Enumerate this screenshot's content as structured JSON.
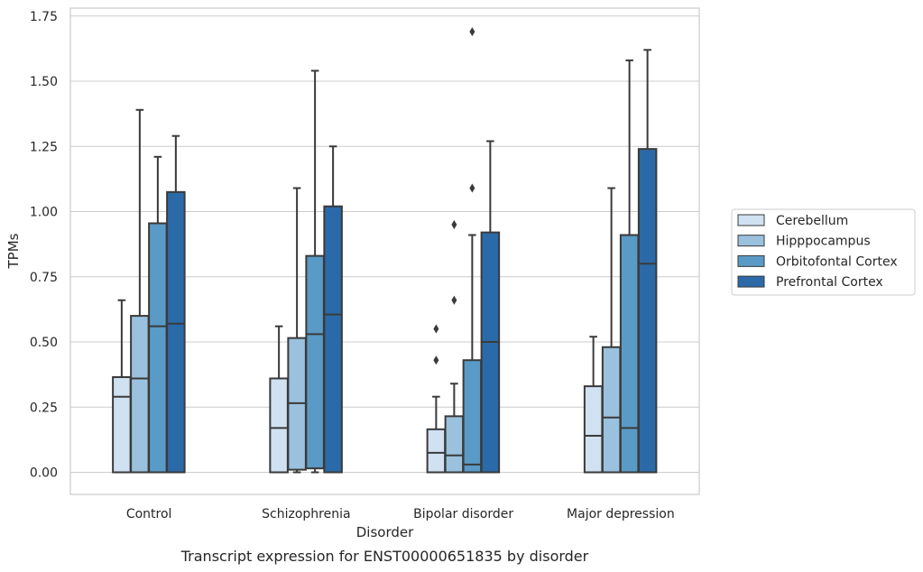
{
  "chart_data": {
    "type": "box",
    "caption": "Transcript expression for ENST00000651835 by disorder",
    "xlabel": "Disorder",
    "ylabel": "TPMs",
    "ylim": [
      -0.08,
      1.77
    ],
    "yticks": [
      "0.00",
      "0.25",
      "0.50",
      "0.75",
      "1.00",
      "1.25",
      "1.50",
      "1.75"
    ],
    "ytick_values": [
      0,
      0.25,
      0.5,
      0.75,
      1.0,
      1.25,
      1.5,
      1.75
    ],
    "grid": "horizontal",
    "legend_position": "right",
    "categories": [
      "Control",
      "Schizophrenia",
      "Bipolar disorder",
      "Major depression"
    ],
    "series": [
      {
        "name": "Cerebellum",
        "color": "#d0e1f2",
        "boxes": [
          {
            "q1": 0,
            "median": 0.29,
            "q3": 0.365,
            "whisker_low": 0,
            "whisker_high": 0.66,
            "outliers": []
          },
          {
            "q1": 0,
            "median": 0.17,
            "q3": 0.36,
            "whisker_low": 0,
            "whisker_high": 0.56,
            "outliers": []
          },
          {
            "q1": 0,
            "median": 0.075,
            "q3": 0.165,
            "whisker_low": 0,
            "whisker_high": 0.29,
            "outliers": [
              0.43,
              0.55
            ]
          },
          {
            "q1": 0,
            "median": 0.14,
            "q3": 0.33,
            "whisker_low": 0,
            "whisker_high": 0.52,
            "outliers": []
          }
        ]
      },
      {
        "name": "Hipppocampus",
        "color": "#9ac1dd",
        "boxes": [
          {
            "q1": 0,
            "median": 0.36,
            "q3": 0.6,
            "whisker_low": 0,
            "whisker_high": 1.39,
            "outliers": []
          },
          {
            "q1": 0.01,
            "median": 0.265,
            "q3": 0.515,
            "whisker_low": 0,
            "whisker_high": 1.09,
            "outliers": []
          },
          {
            "q1": 0,
            "median": 0.065,
            "q3": 0.215,
            "whisker_low": 0,
            "whisker_high": 0.34,
            "outliers": [
              0.66,
              0.95
            ]
          },
          {
            "q1": 0,
            "median": 0.21,
            "q3": 0.48,
            "whisker_low": 0,
            "whisker_high": 1.09,
            "outliers": []
          }
        ]
      },
      {
        "name": "Orbitofontal Cortex",
        "color": "#5a9ac6",
        "boxes": [
          {
            "q1": 0,
            "median": 0.56,
            "q3": 0.955,
            "whisker_low": 0,
            "whisker_high": 1.21,
            "outliers": []
          },
          {
            "q1": 0.015,
            "median": 0.53,
            "q3": 0.83,
            "whisker_low": 0,
            "whisker_high": 1.54,
            "outliers": []
          },
          {
            "q1": 0,
            "median": 0.03,
            "q3": 0.43,
            "whisker_low": 0,
            "whisker_high": 0.91,
            "outliers": [
              1.09,
              1.69
            ]
          },
          {
            "q1": 0,
            "median": 0.17,
            "q3": 0.91,
            "whisker_low": 0,
            "whisker_high": 1.58,
            "outliers": []
          }
        ]
      },
      {
        "name": "Prefrontal Cortex",
        "color": "#2b6aa8",
        "boxes": [
          {
            "q1": 0,
            "median": 0.57,
            "q3": 1.075,
            "whisker_low": 0,
            "whisker_high": 1.29,
            "outliers": []
          },
          {
            "q1": 0,
            "median": 0.605,
            "q3": 1.02,
            "whisker_low": 0,
            "whisker_high": 1.25,
            "outliers": []
          },
          {
            "q1": 0,
            "median": 0.5,
            "q3": 0.92,
            "whisker_low": 0,
            "whisker_high": 1.27,
            "outliers": []
          },
          {
            "q1": 0,
            "median": 0.8,
            "q3": 1.24,
            "whisker_low": 0,
            "whisker_high": 1.62,
            "outliers": []
          }
        ]
      }
    ]
  }
}
